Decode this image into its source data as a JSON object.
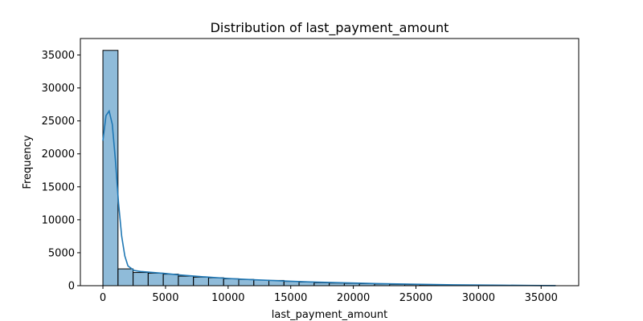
{
  "chart_data": {
    "type": "histogram",
    "title": "Distribution of last_payment_amount",
    "xlabel": "last_payment_amount",
    "ylabel": "Frequency",
    "xlim": [
      -1800,
      38000
    ],
    "ylim": [
      0,
      37500
    ],
    "xticks": [
      0,
      5000,
      10000,
      15000,
      20000,
      25000,
      30000,
      35000
    ],
    "yticks": [
      0,
      5000,
      10000,
      15000,
      20000,
      25000,
      30000,
      35000
    ],
    "bin_edges": [
      0,
      1205,
      2410,
      3615,
      4820,
      6025,
      7230,
      8435,
      9640,
      10845,
      12050,
      13255,
      14460,
      15665,
      16870,
      18075,
      19280,
      20485,
      21690,
      22895,
      24100,
      25305,
      26510,
      27715,
      28920,
      30125,
      31330,
      32535,
      33740,
      34945,
      36150
    ],
    "counts": [
      35700,
      2550,
      2000,
      1900,
      1750,
      1450,
      1300,
      1200,
      1050,
      950,
      850,
      800,
      650,
      550,
      450,
      400,
      350,
      300,
      250,
      200,
      170,
      140,
      120,
      100,
      80,
      60,
      45,
      30,
      25,
      15
    ],
    "kde": {
      "x": [
        0,
        250,
        500,
        750,
        1000,
        1250,
        1500,
        1750,
        2000,
        2500,
        3000,
        4000,
        5000,
        6000,
        8000,
        10000,
        12000,
        14000,
        16000,
        18000,
        20000,
        22000,
        24000,
        26000,
        28000,
        30000,
        32000,
        34000,
        36150
      ],
      "y": [
        22000,
        25800,
        26500,
        24500,
        19000,
        12500,
        7500,
        4500,
        3000,
        2300,
        2150,
        2000,
        1850,
        1650,
        1350,
        1100,
        900,
        750,
        600,
        500,
        400,
        320,
        250,
        190,
        140,
        100,
        70,
        40,
        15
      ]
    },
    "bar_color": "#1f77b4",
    "bar_alpha": 0.5,
    "bar_edge_color": "#000000",
    "kde_color": "#1f77b4",
    "grid": false
  }
}
